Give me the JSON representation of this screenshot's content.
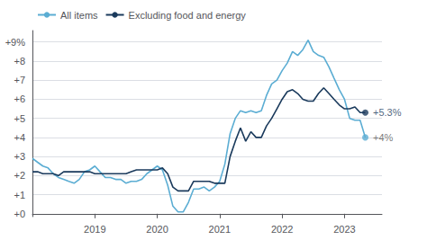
{
  "chart_data": {
    "type": "line",
    "x": [
      2018.0,
      2018.083,
      2018.167,
      2018.25,
      2018.333,
      2018.417,
      2018.5,
      2018.583,
      2018.667,
      2018.75,
      2018.833,
      2018.917,
      2019.0,
      2019.083,
      2019.167,
      2019.25,
      2019.333,
      2019.417,
      2019.5,
      2019.583,
      2019.667,
      2019.75,
      2019.833,
      2019.917,
      2020.0,
      2020.083,
      2020.167,
      2020.25,
      2020.333,
      2020.417,
      2020.5,
      2020.583,
      2020.667,
      2020.75,
      2020.833,
      2020.917,
      2021.0,
      2021.083,
      2021.167,
      2021.25,
      2021.333,
      2021.417,
      2021.5,
      2021.583,
      2021.667,
      2021.75,
      2021.833,
      2021.917,
      2022.0,
      2022.083,
      2022.167,
      2022.25,
      2022.333,
      2022.417,
      2022.5,
      2022.583,
      2022.667,
      2022.75,
      2022.833,
      2022.917,
      2023.0,
      2023.083,
      2023.167,
      2023.25,
      2023.333
    ],
    "series": [
      {
        "name": "All items",
        "color": "#5badd3",
        "values": [
          2.9,
          2.7,
          2.5,
          2.4,
          2.1,
          1.9,
          1.8,
          1.7,
          1.6,
          1.8,
          2.2,
          2.3,
          2.5,
          2.2,
          1.9,
          1.9,
          1.8,
          1.8,
          1.6,
          1.7,
          1.7,
          1.8,
          2.1,
          2.3,
          2.5,
          2.3,
          1.5,
          0.4,
          0.1,
          0.1,
          0.6,
          1.3,
          1.3,
          1.4,
          1.2,
          1.4,
          1.7,
          2.6,
          4.2,
          5.0,
          5.4,
          5.3,
          5.4,
          5.3,
          5.4,
          6.2,
          6.8,
          7.0,
          7.5,
          7.9,
          8.5,
          8.3,
          8.6,
          9.1,
          8.5,
          8.3,
          8.2,
          7.7,
          7.1,
          6.5,
          6.0,
          5.0,
          4.9,
          4.9,
          4.0
        ]
      },
      {
        "name": "Excluding food and energy",
        "color": "#1a3a5c",
        "values": [
          2.2,
          2.2,
          2.1,
          2.1,
          2.1,
          2.0,
          2.2,
          2.2,
          2.2,
          2.2,
          2.2,
          2.2,
          2.1,
          2.1,
          2.1,
          2.1,
          2.1,
          2.1,
          2.1,
          2.2,
          2.3,
          2.3,
          2.3,
          2.3,
          2.3,
          2.4,
          2.1,
          1.4,
          1.2,
          1.2,
          1.2,
          1.7,
          1.7,
          1.7,
          1.7,
          1.6,
          1.6,
          1.6,
          3.0,
          3.8,
          4.5,
          3.8,
          4.3,
          4.0,
          4.0,
          4.6,
          5.0,
          5.5,
          6.0,
          6.4,
          6.5,
          6.3,
          6.0,
          5.9,
          5.9,
          6.3,
          6.6,
          6.3,
          6.0,
          5.7,
          5.5,
          5.5,
          5.6,
          5.3,
          5.3
        ]
      }
    ],
    "annotations": [
      {
        "text": "+5.3%",
        "x": 2023.333,
        "y": 5.3,
        "series": "Excluding food and energy",
        "color": "#1a3a5c"
      },
      {
        "text": "+4%",
        "x": 2023.333,
        "y": 4.0,
        "series": "All items",
        "color": "#555555"
      }
    ],
    "xlim": [
      2018.0,
      2023.6
    ],
    "xticks": [
      2019,
      2020,
      2021,
      2022,
      2023
    ],
    "ylim": [
      -0.15,
      9.6
    ],
    "yticks": [
      {
        "value": 0,
        "label": "+0"
      },
      {
        "value": 1,
        "label": "+1"
      },
      {
        "value": 2,
        "label": "+2"
      },
      {
        "value": 3,
        "label": "+3"
      },
      {
        "value": 4,
        "label": "+4"
      },
      {
        "value": 5,
        "label": "+5"
      },
      {
        "value": 6,
        "label": "+6"
      },
      {
        "value": 7,
        "label": "+7"
      },
      {
        "value": 8,
        "label": "+8"
      },
      {
        "value": 9,
        "label": "+9%"
      }
    ],
    "grid": true,
    "legend": "upper left"
  }
}
